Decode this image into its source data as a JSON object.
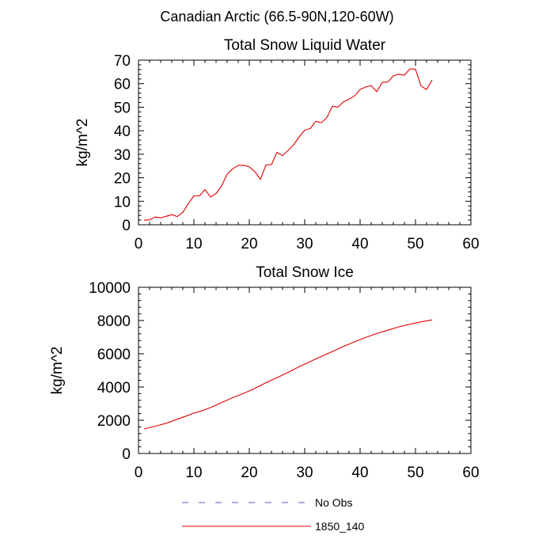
{
  "figure": {
    "title": "Canadian Arctic (66.5-90N,120-60W)"
  },
  "legend": [
    {
      "label": "No Obs",
      "color": "#5a5ab4",
      "dash": true
    },
    {
      "label": "1850_140",
      "color": "#e00000",
      "dash": false
    }
  ],
  "chart_data": [
    {
      "type": "line",
      "title": "Total Snow Liquid Water",
      "xlabel": "",
      "ylabel": "kg/m^2",
      "xlim": [
        0,
        60
      ],
      "ylim": [
        0,
        70
      ],
      "xticks": [
        0,
        10,
        20,
        30,
        40,
        50,
        60
      ],
      "yticks": [
        0,
        10,
        20,
        30,
        40,
        50,
        60,
        70
      ],
      "grid": false,
      "series": [
        {
          "name": "1850_140",
          "color": "#e00000",
          "x": [
            1,
            2,
            3,
            4,
            5,
            6,
            7,
            8,
            9,
            10,
            11,
            12,
            13,
            14,
            15,
            16,
            17,
            18,
            19,
            20,
            21,
            22,
            23,
            24,
            25,
            26,
            27,
            28,
            29,
            30,
            31,
            32,
            33,
            34,
            35,
            36,
            37,
            38,
            39,
            40,
            41,
            42,
            43,
            44,
            45,
            46,
            47,
            48,
            49,
            50,
            51,
            52,
            53
          ],
          "y": [
            2.0,
            2.1,
            3.3,
            3.0,
            3.6,
            4.3,
            3.5,
            5.3,
            9.0,
            12.3,
            12.3,
            15.0,
            11.8,
            13.3,
            16.5,
            21.5,
            23.8,
            25.3,
            25.3,
            24.6,
            22.6,
            19.3,
            25.4,
            25.6,
            30.8,
            29.4,
            31.6,
            34.0,
            37.4,
            40.2,
            40.9,
            44.0,
            43.4,
            45.6,
            50.4,
            50.0,
            52.3,
            53.4,
            54.8,
            57.5,
            58.6,
            59.2,
            56.6,
            60.5,
            60.7,
            63.3,
            64.0,
            63.6,
            66.3,
            66.1,
            59.0,
            57.5,
            61.6
          ]
        }
      ]
    },
    {
      "type": "line",
      "title": "Total Snow Ice",
      "xlabel": "",
      "ylabel": "kg/m^2",
      "xlim": [
        0,
        60
      ],
      "ylim": [
        0,
        10000
      ],
      "xticks": [
        0,
        10,
        20,
        30,
        40,
        50,
        60
      ],
      "yticks": [
        0,
        2000,
        4000,
        6000,
        8000,
        10000
      ],
      "grid": false,
      "series": [
        {
          "name": "1850_140",
          "color": "#e00000",
          "x": [
            1,
            3,
            5,
            7,
            9,
            10,
            11,
            13,
            15,
            17,
            19,
            21,
            23,
            25,
            27,
            29,
            31,
            33,
            35,
            37,
            39,
            41,
            43,
            45,
            47,
            49,
            51,
            53
          ],
          "y": [
            1480,
            1640,
            1820,
            2060,
            2300,
            2440,
            2520,
            2760,
            3060,
            3360,
            3620,
            3920,
            4260,
            4560,
            4880,
            5220,
            5540,
            5840,
            6140,
            6440,
            6720,
            6980,
            7220,
            7420,
            7620,
            7780,
            7920,
            8040
          ]
        }
      ]
    }
  ]
}
